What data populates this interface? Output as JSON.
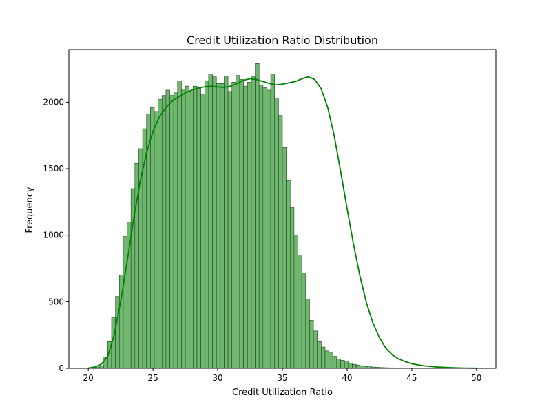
{
  "chart_data": {
    "type": "bar",
    "subtype": "histogram-with-kde",
    "title": "Credit Utilization Ratio Distribution",
    "xlabel": "Credit Utilization Ratio",
    "ylabel": "Frequency",
    "xlim": [
      18.5,
      51.5
    ],
    "ylim": [
      0,
      2395
    ],
    "xticks": [
      20,
      25,
      30,
      35,
      40,
      45,
      50
    ],
    "yticks": [
      0,
      500,
      1000,
      1500,
      2000
    ],
    "grid": false,
    "legend": "none",
    "colors": {
      "bar_fill": "#70b870",
      "bar_edge": "#1c401c",
      "kde_line": "#008000",
      "frame": "#000000"
    },
    "bins": {
      "start": 20,
      "width": 0.3,
      "counts": [
        3,
        5,
        10,
        20,
        80,
        200,
        380,
        540,
        700,
        990,
        1100,
        1350,
        1540,
        1650,
        1800,
        1910,
        1960,
        1930,
        2020,
        2050,
        2090,
        2050,
        2070,
        2160,
        2090,
        2120,
        2080,
        2120,
        2110,
        2060,
        2160,
        2210,
        2190,
        2140,
        2140,
        2190,
        2080,
        2150,
        2200,
        2170,
        2120,
        2150,
        2190,
        2290,
        2130,
        2110,
        2090,
        2210,
        2030,
        1900,
        1660,
        1410,
        1210,
        1000,
        850,
        710,
        520,
        360,
        280,
        200,
        160,
        130,
        120,
        90,
        70,
        60,
        55,
        40,
        30,
        25,
        20,
        15,
        12,
        10,
        8,
        6,
        5,
        4,
        4,
        3,
        3,
        2,
        2,
        2,
        2,
        1,
        1,
        1,
        1,
        1,
        1,
        1,
        1,
        1
      ]
    },
    "kde": {
      "x": [
        20,
        20.5,
        21,
        21.5,
        22,
        22.5,
        23,
        23.5,
        24,
        24.5,
        25,
        25.5,
        26,
        26.5,
        27,
        27.5,
        28,
        28.5,
        29,
        29.5,
        30,
        30.5,
        31,
        31.5,
        32,
        32.5,
        33,
        33.5,
        34,
        34.5,
        35,
        35.5,
        36,
        36.5,
        37,
        37.5,
        38,
        38.5,
        39,
        39.5,
        40,
        40.5,
        41,
        41.5,
        42,
        42.5,
        43,
        43.5,
        44,
        44.5,
        45,
        45.5,
        46,
        47,
        48,
        49,
        50
      ],
      "y": [
        2,
        10,
        30,
        90,
        250,
        500,
        800,
        1120,
        1400,
        1620,
        1780,
        1890,
        1960,
        2010,
        2040,
        2070,
        2090,
        2105,
        2115,
        2120,
        2115,
        2110,
        2120,
        2140,
        2165,
        2175,
        2170,
        2155,
        2140,
        2130,
        2135,
        2145,
        2155,
        2175,
        2190,
        2170,
        2100,
        1960,
        1750,
        1480,
        1200,
        930,
        690,
        490,
        340,
        230,
        150,
        100,
        70,
        50,
        35,
        25,
        18,
        10,
        5,
        2,
        1
      ]
    }
  }
}
